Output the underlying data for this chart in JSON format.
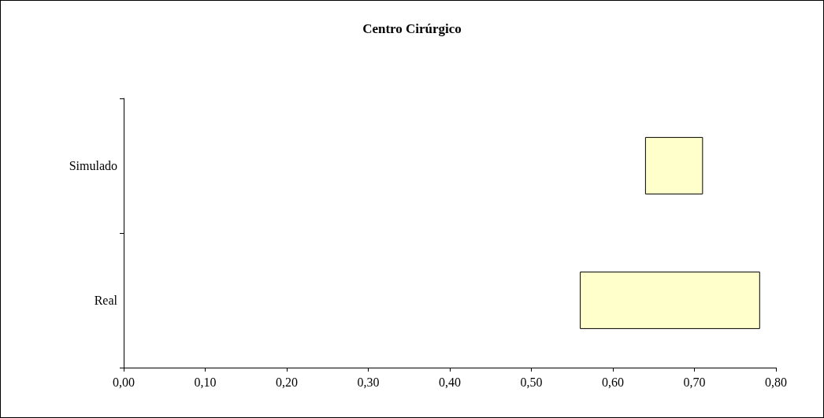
{
  "chart_data": {
    "type": "bar",
    "title": "Centro Cirúrgico",
    "orientation": "horizontal",
    "categories": [
      "Simulado",
      "Real"
    ],
    "values": [
      0.07,
      0.22
    ],
    "base": [
      0.64,
      0.56
    ],
    "color": "#ffffcc",
    "xlim": [
      0,
      0.8
    ],
    "xticks": [
      {
        "value": 0,
        "label": "0,00"
      },
      {
        "value": 0.1,
        "label": "0,10"
      },
      {
        "value": 0.2,
        "label": "0,20"
      },
      {
        "value": 0.3,
        "label": "0,30"
      },
      {
        "value": 0.4,
        "label": "0,40"
      },
      {
        "value": 0.5,
        "label": "0,50"
      },
      {
        "value": 0.6,
        "label": "0,60"
      },
      {
        "value": 0.7,
        "label": "0,70"
      },
      {
        "value": 0.8,
        "label": "0,80"
      }
    ],
    "grid": false
  }
}
